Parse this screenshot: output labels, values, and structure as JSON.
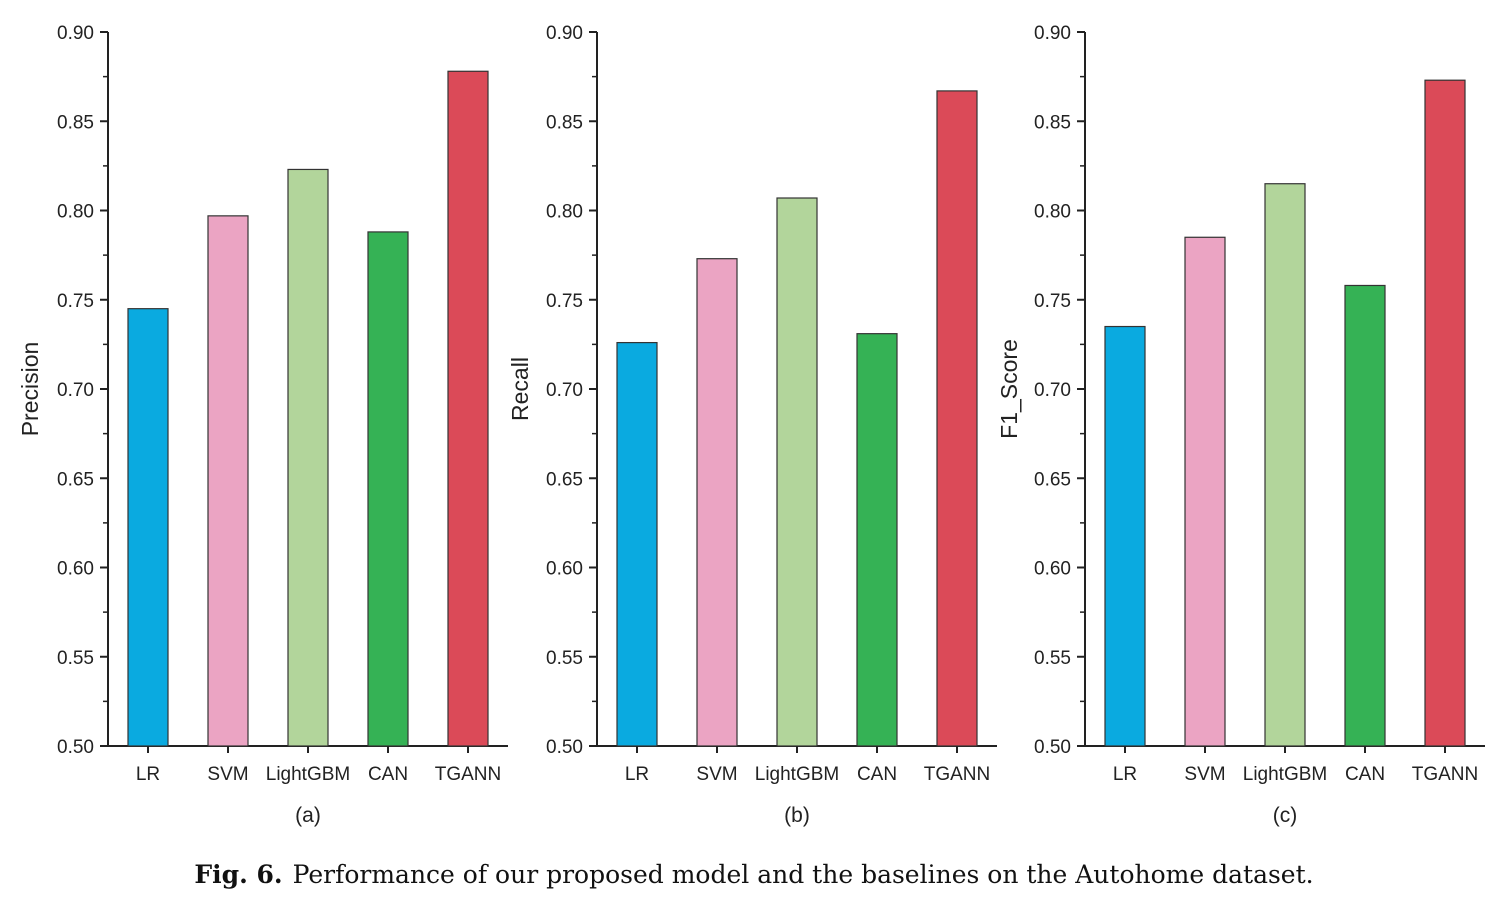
{
  "caption": {
    "figure_number": "Fig. 6.",
    "text": "Performance of our proposed model and the baselines on the Autohome dataset."
  },
  "colors": {
    "LR": "#0aaae0",
    "SVM": "#eba4c3",
    "LightGBM": "#b2d59b",
    "CAN": "#35b255",
    "TGANN": "#db4a58",
    "axis": "#222222",
    "bar_stroke": "#333333"
  },
  "chart_data": [
    {
      "type": "bar",
      "panel_label": "(a)",
      "categories": [
        "LR",
        "SVM",
        "LightGBM",
        "CAN",
        "TGANN"
      ],
      "values": [
        0.745,
        0.797,
        0.823,
        0.788,
        0.878
      ],
      "xlabel": "",
      "ylabel": "Precision",
      "ylim": [
        0.5,
        0.9
      ],
      "yticks": [
        "0.50",
        "0.55",
        "0.60",
        "0.65",
        "0.70",
        "0.75",
        "0.80",
        "0.85",
        "0.90"
      ],
      "grid": false,
      "legend": "none"
    },
    {
      "type": "bar",
      "panel_label": "(b)",
      "categories": [
        "LR",
        "SVM",
        "LightGBM",
        "CAN",
        "TGANN"
      ],
      "values": [
        0.726,
        0.773,
        0.807,
        0.731,
        0.867
      ],
      "xlabel": "",
      "ylabel": "Recall",
      "ylim": [
        0.5,
        0.9
      ],
      "yticks": [
        "0.50",
        "0.55",
        "0.60",
        "0.65",
        "0.70",
        "0.75",
        "0.80",
        "0.85",
        "0.90"
      ],
      "grid": false,
      "legend": "none"
    },
    {
      "type": "bar",
      "panel_label": "(c)",
      "categories": [
        "LR",
        "SVM",
        "LightGBM",
        "CAN",
        "TGANN"
      ],
      "values": [
        0.735,
        0.785,
        0.815,
        0.758,
        0.873
      ],
      "xlabel": "",
      "ylabel": "F1_Score",
      "ylim": [
        0.5,
        0.9
      ],
      "yticks": [
        "0.50",
        "0.55",
        "0.60",
        "0.65",
        "0.70",
        "0.75",
        "0.80",
        "0.85",
        "0.90"
      ],
      "grid": false,
      "legend": "none"
    }
  ]
}
